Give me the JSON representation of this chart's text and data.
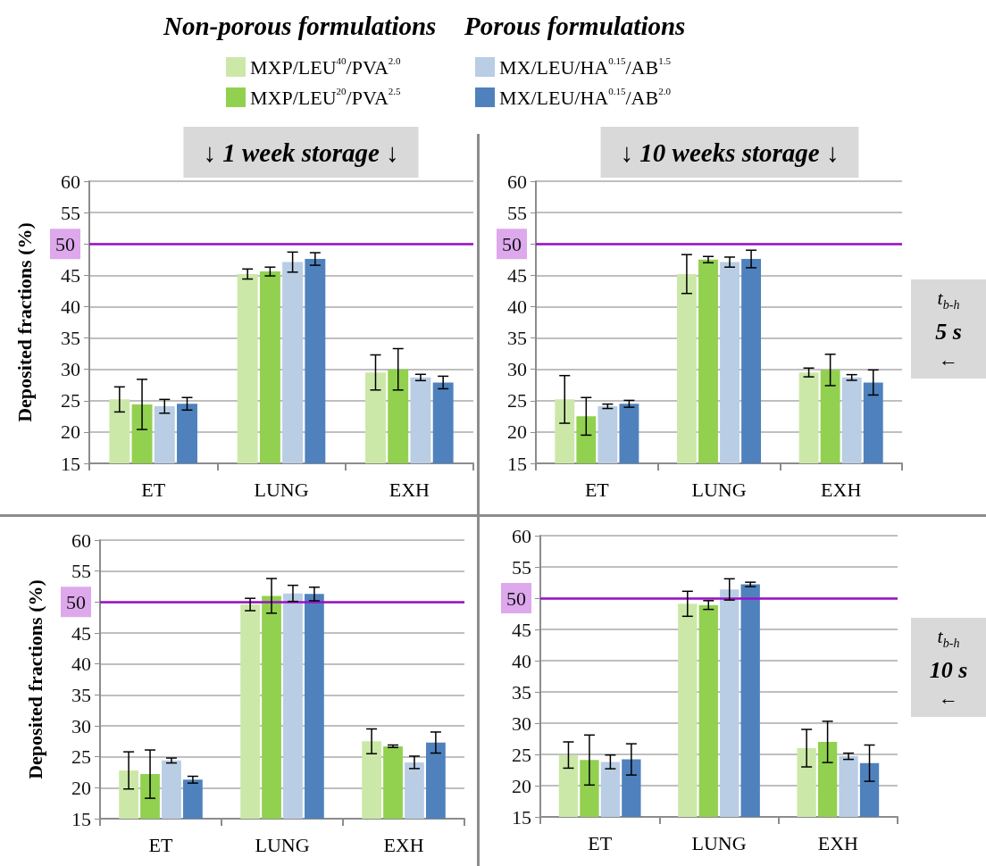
{
  "chart_data": [
    {
      "type": "bar",
      "title": "↓ 1 week storage ↓",
      "ylabel": "Deposited fractions (%)",
      "categories": [
        "ET",
        "LUNG",
        "EXH"
      ],
      "series": [
        {
          "name": "MXP/LEU$^{40}$/PVA$^{2.0}$",
          "color": "#cce8a8",
          "values": [
            25.2,
            45.2,
            29.5
          ],
          "errors": [
            2.0,
            0.8,
            2.8
          ]
        },
        {
          "name": "MXP/LEU$^{20}$/PVA$^{2.5}$",
          "color": "#92d050",
          "values": [
            24.4,
            45.6,
            30.0
          ],
          "errors": [
            4.0,
            0.7,
            3.3
          ]
        },
        {
          "name": "MX/LEU/HA$^{0.15}$/AB$^{1.5}$",
          "color": "#b9cde5",
          "values": [
            24.1,
            47.1,
            28.7
          ],
          "errors": [
            1.1,
            1.6,
            0.5
          ]
        },
        {
          "name": "MX/LEU/HA$^{0.15}$/AB$^{2.0}$",
          "color": "#4f81bd",
          "values": [
            24.5,
            47.6,
            27.9
          ],
          "errors": [
            1.0,
            1.0,
            1.0
          ]
        }
      ],
      "ylim": [
        15,
        60
      ],
      "yticks": [
        15,
        20,
        25,
        30,
        35,
        40,
        45,
        50,
        55,
        60
      ],
      "grid": "y",
      "legend": "top",
      "ref_lines": [
        {
          "axis": "y",
          "value": 50,
          "color": "#9a10c8"
        }
      ],
      "annotations": [
        "Non-porous formulations",
        "Porous formulations"
      ]
    },
    {
      "type": "bar",
      "title": "↓ 10 weeks storage ↓",
      "categories": [
        "ET",
        "LUNG",
        "EXH"
      ],
      "series": [
        {
          "color": "#cce8a8",
          "values": [
            25.2,
            45.2,
            29.5
          ],
          "errors": [
            3.8,
            3.1,
            0.7
          ]
        },
        {
          "color": "#92d050",
          "values": [
            22.5,
            47.5,
            29.9
          ],
          "errors": [
            3.0,
            0.5,
            2.5
          ]
        },
        {
          "color": "#b9cde5",
          "values": [
            24.1,
            47.1,
            28.7
          ],
          "errors": [
            0.35,
            0.8,
            0.45
          ]
        },
        {
          "color": "#4f81bd",
          "values": [
            24.5,
            47.6,
            27.9
          ],
          "errors": [
            0.55,
            1.4,
            2.0
          ]
        }
      ],
      "ylim": [
        15,
        60
      ],
      "yticks": [
        15,
        20,
        25,
        30,
        35,
        40,
        45,
        50,
        55,
        60
      ],
      "grid": "y",
      "ref_lines": [
        {
          "axis": "y",
          "value": 50,
          "color": "#9a10c8"
        }
      ],
      "annotations": [
        "t$_{b-h}$\n5 s\n←"
      ]
    },
    {
      "type": "bar",
      "ylabel": "Deposited fractions (%)",
      "categories": [
        "ET",
        "LUNG",
        "EXH"
      ],
      "series": [
        {
          "color": "#cce8a8",
          "values": [
            22.8,
            49.6,
            27.5
          ],
          "errors": [
            3.0,
            1.0,
            2.0
          ]
        },
        {
          "color": "#92d050",
          "values": [
            22.2,
            51.0,
            26.7
          ],
          "errors": [
            3.9,
            2.8,
            0.2
          ]
        },
        {
          "color": "#b9cde5",
          "values": [
            24.4,
            51.4,
            24.1
          ],
          "errors": [
            0.4,
            1.3,
            1.0
          ]
        },
        {
          "color": "#4f81bd",
          "values": [
            21.3,
            51.3,
            27.3
          ],
          "errors": [
            0.55,
            1.1,
            1.7
          ]
        }
      ],
      "ylim": [
        15,
        60
      ],
      "yticks": [
        15,
        20,
        25,
        30,
        35,
        40,
        45,
        50,
        55,
        60
      ],
      "grid": "y",
      "ref_lines": [
        {
          "axis": "y",
          "value": 50,
          "color": "#9a10c8"
        }
      ]
    },
    {
      "type": "bar",
      "categories": [
        "ET",
        "LUNG",
        "EXH"
      ],
      "series": [
        {
          "color": "#cce8a8",
          "values": [
            24.9,
            49.1,
            26.0
          ],
          "errors": [
            2.1,
            2.0,
            3.0
          ]
        },
        {
          "color": "#92d050",
          "values": [
            24.1,
            48.9,
            27.0
          ],
          "errors": [
            4.0,
            0.7,
            3.3
          ]
        },
        {
          "color": "#b9cde5",
          "values": [
            23.8,
            51.4,
            24.7
          ],
          "errors": [
            1.1,
            1.7,
            0.5
          ]
        },
        {
          "color": "#4f81bd",
          "values": [
            24.2,
            52.2,
            23.6
          ],
          "errors": [
            2.5,
            0.35,
            2.9
          ]
        }
      ],
      "ylim": [
        15,
        60
      ],
      "yticks": [
        15,
        20,
        25,
        30,
        35,
        40,
        45,
        50,
        55,
        60
      ],
      "grid": "y",
      "ref_lines": [
        {
          "axis": "y",
          "value": 50,
          "color": "#9a10c8"
        }
      ],
      "annotations": [
        "t$_{b-h}$\n10 s\n←"
      ]
    }
  ]
}
